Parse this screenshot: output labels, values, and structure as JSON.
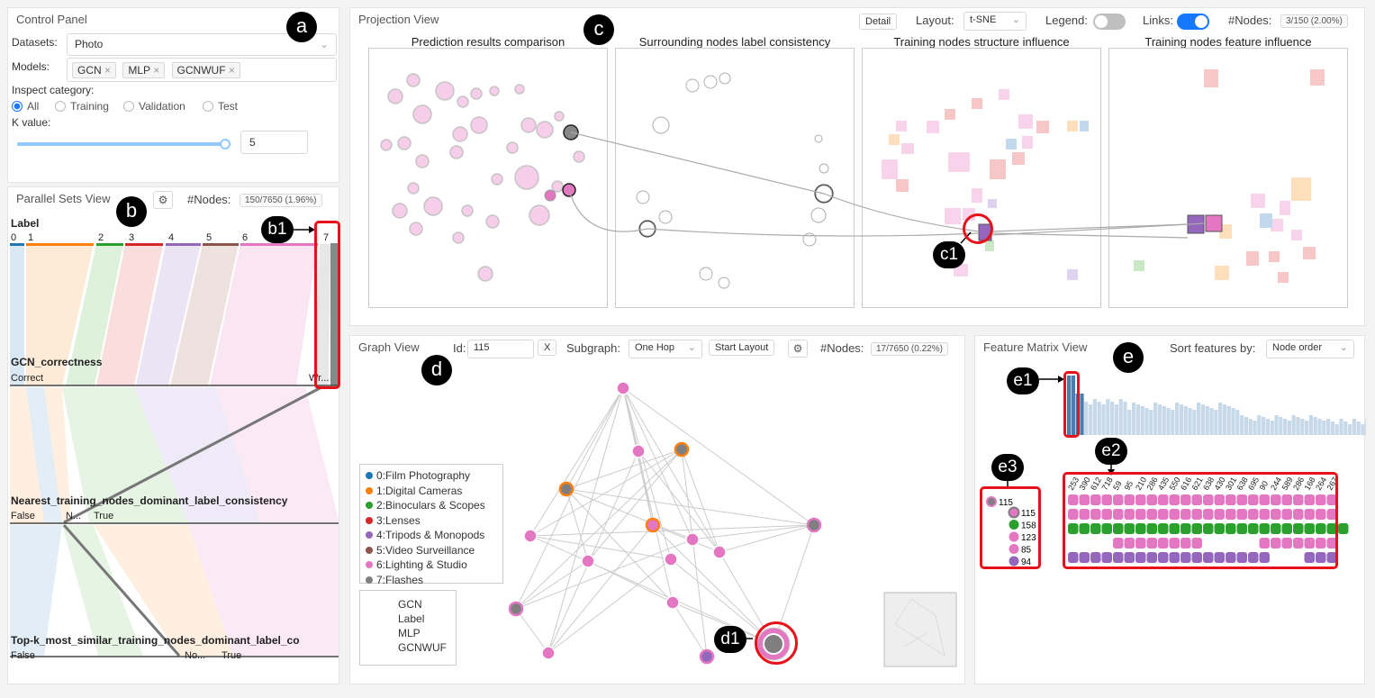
{
  "control_panel": {
    "title": "Control Panel",
    "datasets_label": "Datasets:",
    "dataset_value": "Photo",
    "models_label": "Models:",
    "models": [
      "GCN",
      "MLP",
      "GCNWUF"
    ],
    "inspect_label": "Inspect category:",
    "categories": [
      "All",
      "Training",
      "Validation",
      "Test"
    ],
    "selected_category": "All",
    "k_label": "K value:",
    "k_value": "5",
    "k_slider_fraction": 1.0
  },
  "parallel_sets": {
    "title": "Parallel Sets View",
    "nodes_label": "#Nodes:",
    "nodes_badge": "150/7650 (1.96%)",
    "axes": [
      {
        "title": "Label",
        "cats": [
          "0",
          "1",
          "2",
          "3",
          "4",
          "5",
          "6",
          "7"
        ]
      },
      {
        "title": "GCN_correctness",
        "cats": [
          "Correct",
          "Wr..."
        ]
      },
      {
        "title": "Nearest_training_nodes_dominant_label_consistency",
        "cats": [
          "False",
          "N...",
          "True"
        ]
      },
      {
        "title": "Top-k_most_similar_training_nodes_dominant_label_co",
        "cats": [
          "False",
          "No...",
          "True"
        ]
      }
    ]
  },
  "projection": {
    "title": "Projection View",
    "detail_button": "Detail",
    "layout_label": "Layout:",
    "layout_value": "t-SNE",
    "legend_label": "Legend:",
    "legend_on": false,
    "links_label": "Links:",
    "links_on": true,
    "nodes_label": "#Nodes:",
    "nodes_badge": "3/150 (2.00%)",
    "subviews": [
      "Prediction results comparison",
      "Surrounding nodes label consistency",
      "Training nodes structure influence",
      "Training nodes feature influence"
    ]
  },
  "graph_view": {
    "title": "Graph View",
    "id_label": "Id:",
    "id_value": "115",
    "clear_button": "X",
    "subgraph_label": "Subgraph:",
    "subgraph_value": "One Hop",
    "start_layout_button": "Start Layout",
    "nodes_label": "#Nodes:",
    "nodes_badge": "17/7650 (0.22%)",
    "legend": [
      {
        "label": "0:Film Photography",
        "color": "#1f77b4"
      },
      {
        "label": "1:Digital Cameras",
        "color": "#ff7f0e"
      },
      {
        "label": "2:Binoculars & Scopes",
        "color": "#2ca02c"
      },
      {
        "label": "3:Lenses",
        "color": "#d62728"
      },
      {
        "label": "4:Tripods & Monopods",
        "color": "#9467bd"
      },
      {
        "label": "5:Video Surveillance",
        "color": "#8c564b"
      },
      {
        "label": "6:Lighting & Studio",
        "color": "#e377c2"
      },
      {
        "label": "7:Flashes",
        "color": "#7f7f7f"
      }
    ],
    "glyph_legend": [
      "GCN",
      "Label",
      "MLP",
      "GCNWUF"
    ]
  },
  "feature_matrix": {
    "title": "Feature Matrix View",
    "sort_label": "Sort features by:",
    "sort_value": "Node order",
    "column_ids": [
      "253",
      "390",
      "612",
      "718",
      "59",
      "95",
      "210",
      "286",
      "435",
      "550",
      "616",
      "621",
      "638",
      "430",
      "301",
      "638",
      "695",
      "90",
      "244",
      "589",
      "286",
      "168",
      "264",
      "267"
    ],
    "rows": [
      {
        "id": "115",
        "color": "#e377c2"
      },
      {
        "id": "158",
        "color": "#2ca02c"
      },
      {
        "id": "123",
        "color": "#e377c2"
      },
      {
        "id": "85",
        "color": "#e377c2"
      },
      {
        "id": "94",
        "color": "#9467bd"
      }
    ],
    "query_id": "115"
  },
  "annotations": {
    "a": "a",
    "b": "b",
    "c": "c",
    "d": "d",
    "e": "e",
    "b1": "b1",
    "c1": "c1",
    "d1": "d1",
    "e1": "e1",
    "e2": "e2",
    "e3": "e3"
  }
}
